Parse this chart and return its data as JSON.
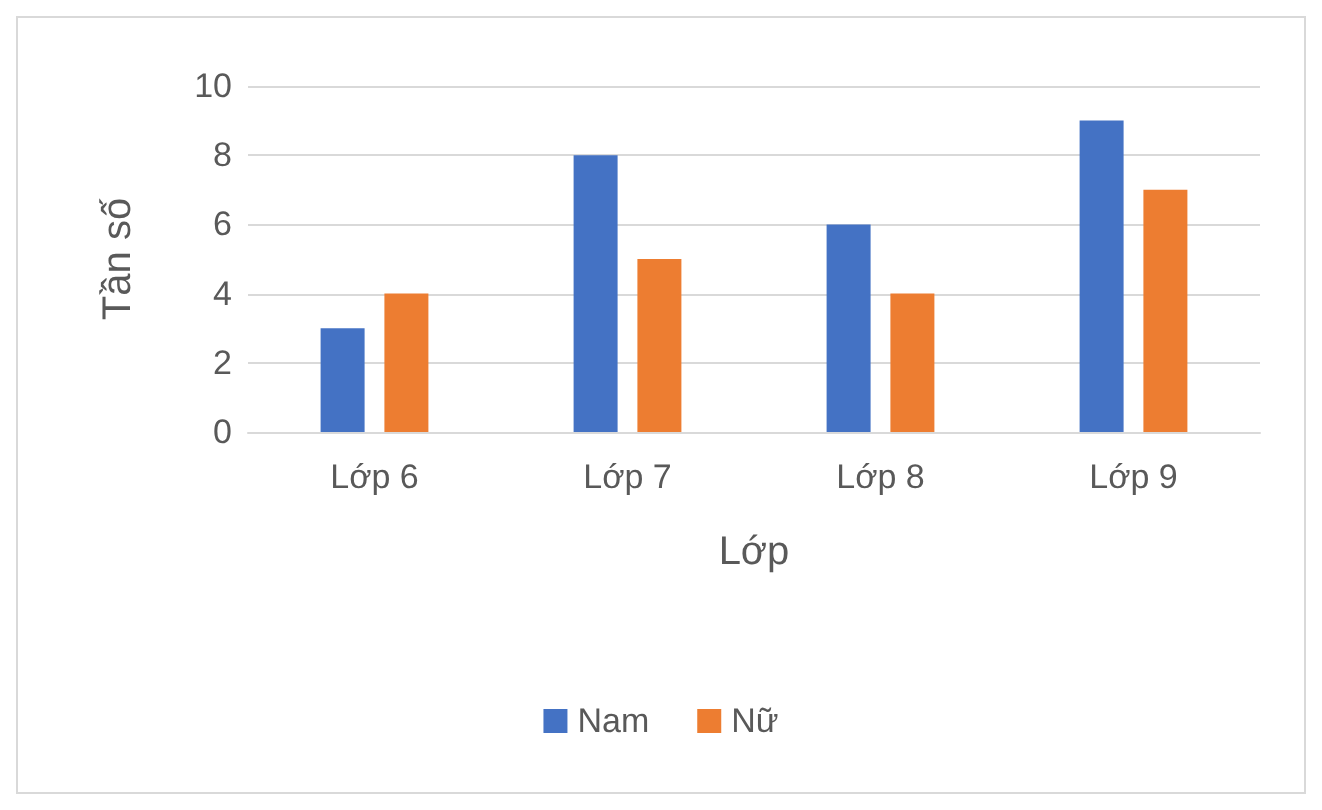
{
  "chart_data": {
    "type": "bar",
    "xlabel": "Lớp",
    "ylabel": "Tần số",
    "categories": [
      "Lớp 6",
      "Lớp 7",
      "Lớp 8",
      "Lớp 9"
    ],
    "series": [
      {
        "name": "Nam",
        "color": "#4472c4",
        "values": [
          3,
          8,
          6,
          9
        ]
      },
      {
        "name": "Nữ",
        "color": "#ed7d31",
        "values": [
          4,
          5,
          4,
          7
        ]
      }
    ],
    "ylim": [
      0,
      10
    ],
    "yticks": [
      0,
      2,
      4,
      6,
      8,
      10
    ],
    "grid": "y",
    "legend": "bottom"
  }
}
